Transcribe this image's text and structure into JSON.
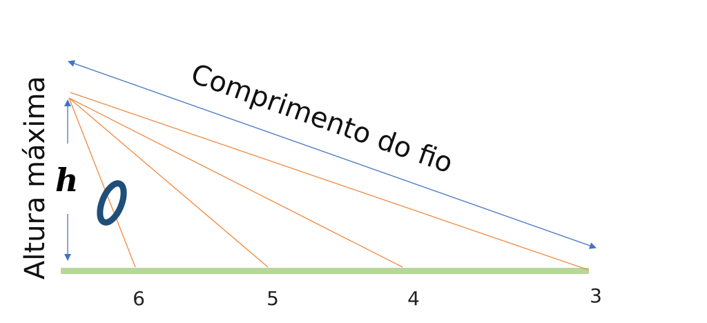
{
  "diagram": {
    "wire_length_label": "Comprimento do fio",
    "max_height_label": "Altura máxima",
    "height_symbol": "h",
    "ring_symbol": "O",
    "ground_marks": [
      "6",
      "5",
      "4",
      "3"
    ],
    "colors": {
      "ground": "#b7d79a",
      "wires": "#f0883e",
      "arrows": "#4472c4",
      "ring": "#1f4e79"
    }
  }
}
